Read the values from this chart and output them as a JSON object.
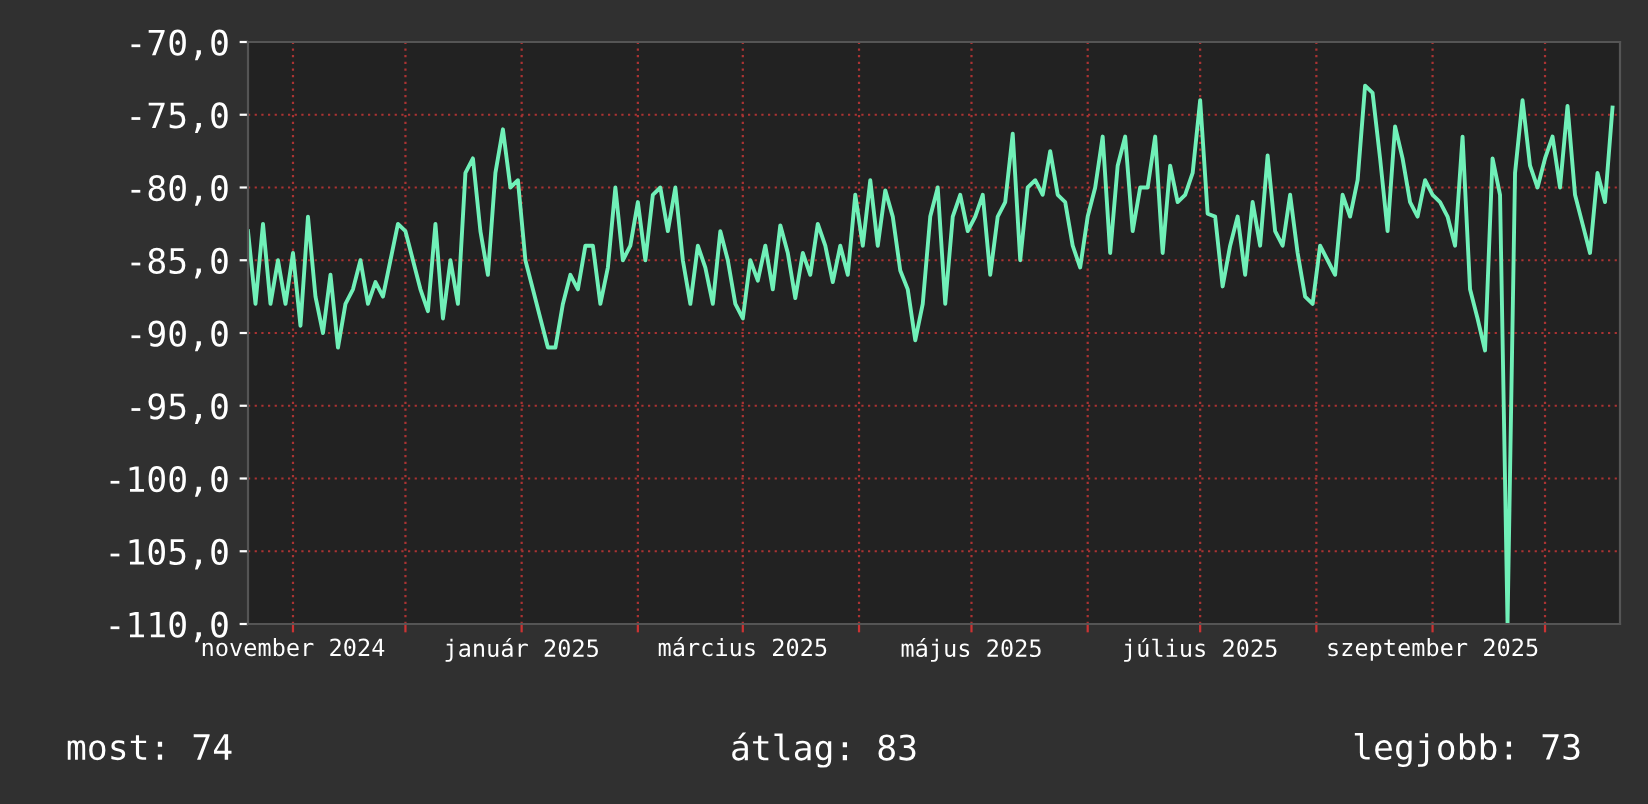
{
  "chart_data": {
    "type": "line",
    "x": [
      "2024-10-20",
      "2024-10-22",
      "2024-10-24",
      "2024-10-26",
      "2024-10-28",
      "2024-10-30",
      "2024-11-01",
      "2024-11-03",
      "2024-11-05",
      "2024-11-07",
      "2024-11-09",
      "2024-11-11",
      "2024-11-13",
      "2024-11-15",
      "2024-11-17",
      "2024-11-19",
      "2024-11-21",
      "2024-11-23",
      "2024-11-25",
      "2024-11-27",
      "2024-11-29",
      "2024-12-01",
      "2024-12-03",
      "2024-12-05",
      "2024-12-07",
      "2024-12-09",
      "2024-12-11",
      "2024-12-13",
      "2024-12-15",
      "2024-12-17",
      "2024-12-19",
      "2024-12-21",
      "2024-12-23",
      "2024-12-25",
      "2024-12-27",
      "2024-12-29",
      "2024-12-31",
      "2025-01-02",
      "2025-01-04",
      "2025-01-06",
      "2025-01-08",
      "2025-01-10",
      "2025-01-12",
      "2025-01-14",
      "2025-01-16",
      "2025-01-18",
      "2025-01-20",
      "2025-01-22",
      "2025-01-24",
      "2025-01-26",
      "2025-01-28",
      "2025-01-30",
      "2025-02-01",
      "2025-02-03",
      "2025-02-05",
      "2025-02-07",
      "2025-02-09",
      "2025-02-11",
      "2025-02-13",
      "2025-02-15",
      "2025-02-17",
      "2025-02-19",
      "2025-02-21",
      "2025-02-23",
      "2025-02-25",
      "2025-02-27",
      "2025-03-01",
      "2025-03-03",
      "2025-03-05",
      "2025-03-07",
      "2025-03-09",
      "2025-03-11",
      "2025-03-13",
      "2025-03-15",
      "2025-03-17",
      "2025-03-19",
      "2025-03-21",
      "2025-03-23",
      "2025-03-25",
      "2025-03-27",
      "2025-03-29",
      "2025-03-31",
      "2025-04-02",
      "2025-04-04",
      "2025-04-06",
      "2025-04-08",
      "2025-04-10",
      "2025-04-12",
      "2025-04-14",
      "2025-04-16",
      "2025-04-18",
      "2025-04-20",
      "2025-04-22",
      "2025-04-24",
      "2025-04-26",
      "2025-04-28",
      "2025-04-30",
      "2025-05-02",
      "2025-05-04",
      "2025-05-06",
      "2025-05-08",
      "2025-05-10",
      "2025-05-12",
      "2025-05-14",
      "2025-05-16",
      "2025-05-18",
      "2025-05-20",
      "2025-05-22",
      "2025-05-24",
      "2025-05-26",
      "2025-05-28",
      "2025-05-30",
      "2025-06-01",
      "2025-06-03",
      "2025-06-05",
      "2025-06-07",
      "2025-06-09",
      "2025-06-11",
      "2025-06-13",
      "2025-06-15",
      "2025-06-17",
      "2025-06-19",
      "2025-06-21",
      "2025-06-23",
      "2025-06-25",
      "2025-06-27",
      "2025-06-29",
      "2025-07-01",
      "2025-07-03",
      "2025-07-05",
      "2025-07-07",
      "2025-07-09",
      "2025-07-11",
      "2025-07-13",
      "2025-07-15",
      "2025-07-17",
      "2025-07-19",
      "2025-07-21",
      "2025-07-23",
      "2025-07-25",
      "2025-07-27",
      "2025-07-29",
      "2025-07-31",
      "2025-08-02",
      "2025-08-04",
      "2025-08-06",
      "2025-08-08",
      "2025-08-10",
      "2025-08-12",
      "2025-08-14",
      "2025-08-16",
      "2025-08-18",
      "2025-08-20",
      "2025-08-22",
      "2025-08-24",
      "2025-08-26",
      "2025-08-28",
      "2025-08-30",
      "2025-09-01",
      "2025-09-03",
      "2025-09-05",
      "2025-09-07",
      "2025-09-09",
      "2025-09-11",
      "2025-09-13",
      "2025-09-15",
      "2025-09-17",
      "2025-09-19",
      "2025-09-21",
      "2025-09-23",
      "2025-09-25",
      "2025-09-27",
      "2025-09-29",
      "2025-10-01",
      "2025-10-03",
      "2025-10-05",
      "2025-10-07",
      "2025-10-09",
      "2025-10-11",
      "2025-10-13",
      "2025-10-15",
      "2025-10-17",
      "2025-10-19"
    ],
    "series": [
      {
        "color": "#70f0b8",
        "values": [
          -83,
          -88,
          -82.5,
          -88,
          -85,
          -88,
          -84.5,
          -89.5,
          -82,
          -87.5,
          -90,
          -86,
          -91,
          -88,
          -87,
          -85,
          -88,
          -86.5,
          -87.5,
          -85,
          -82.5,
          -83,
          -85,
          -87,
          -88.5,
          -82.5,
          -89,
          -85,
          -88,
          -79,
          -78,
          -83,
          -86,
          -79,
          -76,
          -80,
          -79.5,
          -85,
          -87,
          -89,
          -91,
          -91,
          -88,
          -86,
          -87,
          -84,
          -84,
          -88,
          -85.5,
          -80,
          -85,
          -84,
          -81,
          -85,
          -80.5,
          -80,
          -83,
          -80,
          -85,
          -88,
          -84,
          -85.5,
          -88,
          -83,
          -85,
          -88,
          -89,
          -85,
          -86.4,
          -84,
          -87,
          -82.6,
          -84.5,
          -87.6,
          -84.5,
          -86,
          -82.5,
          -84,
          -86.5,
          -84,
          -86,
          -80.5,
          -84,
          -79.5,
          -84,
          -80.2,
          -82,
          -85.7,
          -87,
          -90.5,
          -88,
          -82,
          -80,
          -88,
          -82,
          -80.5,
          -83,
          -82,
          -80.5,
          -86,
          -82,
          -81,
          -76.3,
          -85,
          -80,
          -79.5,
          -80.5,
          -77.5,
          -80.5,
          -81,
          -84,
          -85.5,
          -82,
          -80,
          -76.5,
          -84.5,
          -78.5,
          -76.5,
          -83,
          -80,
          -80,
          -76.5,
          -84.5,
          -78.5,
          -81,
          -80.5,
          -79,
          -74,
          -81.8,
          -82,
          -86.8,
          -84,
          -82,
          -86,
          -81,
          -84,
          -77.8,
          -83,
          -84,
          -80.5,
          -84.5,
          -87.5,
          -88,
          -84,
          -85,
          -86,
          -80.5,
          -82,
          -79.5,
          -73,
          -73.5,
          -78,
          -83,
          -75.8,
          -78,
          -81,
          -82,
          -79.5,
          -80.5,
          -81,
          -82,
          -84,
          -76.5,
          -87,
          -89,
          -91.2,
          -78,
          -80.5,
          -110,
          -79,
          -74,
          -78.5,
          -80,
          -78,
          -76.5,
          -80,
          -74.4,
          -80.5,
          -82.5,
          -84.5,
          -79,
          -81,
          -74.5
        ]
      }
    ],
    "xlim": [
      "2024-10-20",
      "2025-10-21"
    ],
    "xticks": [
      {
        "value": "2024-11-01",
        "label": "november 2024"
      },
      {
        "value": "2024-12-01",
        "label": null
      },
      {
        "value": "2025-01-01",
        "label": "január 2025"
      },
      {
        "value": "2025-02-01",
        "label": null
      },
      {
        "value": "2025-03-01",
        "label": "március 2025"
      },
      {
        "value": "2025-04-01",
        "label": null
      },
      {
        "value": "2025-05-01",
        "label": "május 2025"
      },
      {
        "value": "2025-06-01",
        "label": null
      },
      {
        "value": "2025-07-01",
        "label": "július 2025"
      },
      {
        "value": "2025-08-01",
        "label": null
      },
      {
        "value": "2025-09-01",
        "label": "szeptember 2025"
      },
      {
        "value": "2025-10-01",
        "label": null
      }
    ],
    "ylim": [
      -110,
      -70
    ],
    "yticks": [
      {
        "value": -110,
        "label": "-110,0"
      },
      {
        "value": -105,
        "label": "-105,0"
      },
      {
        "value": -100,
        "label": "-100,0"
      },
      {
        "value": -95,
        "label": "-95,0"
      },
      {
        "value": -90,
        "label": "-90,0"
      },
      {
        "value": -85,
        "label": "-85,0"
      },
      {
        "value": -80,
        "label": "-80,0"
      },
      {
        "value": -75,
        "label": "-75,0"
      },
      {
        "value": -70,
        "label": "-70,0"
      }
    ],
    "grid": true,
    "annotations": [
      "most: 74",
      "átlag: 83",
      "legjobb: 73"
    ]
  }
}
